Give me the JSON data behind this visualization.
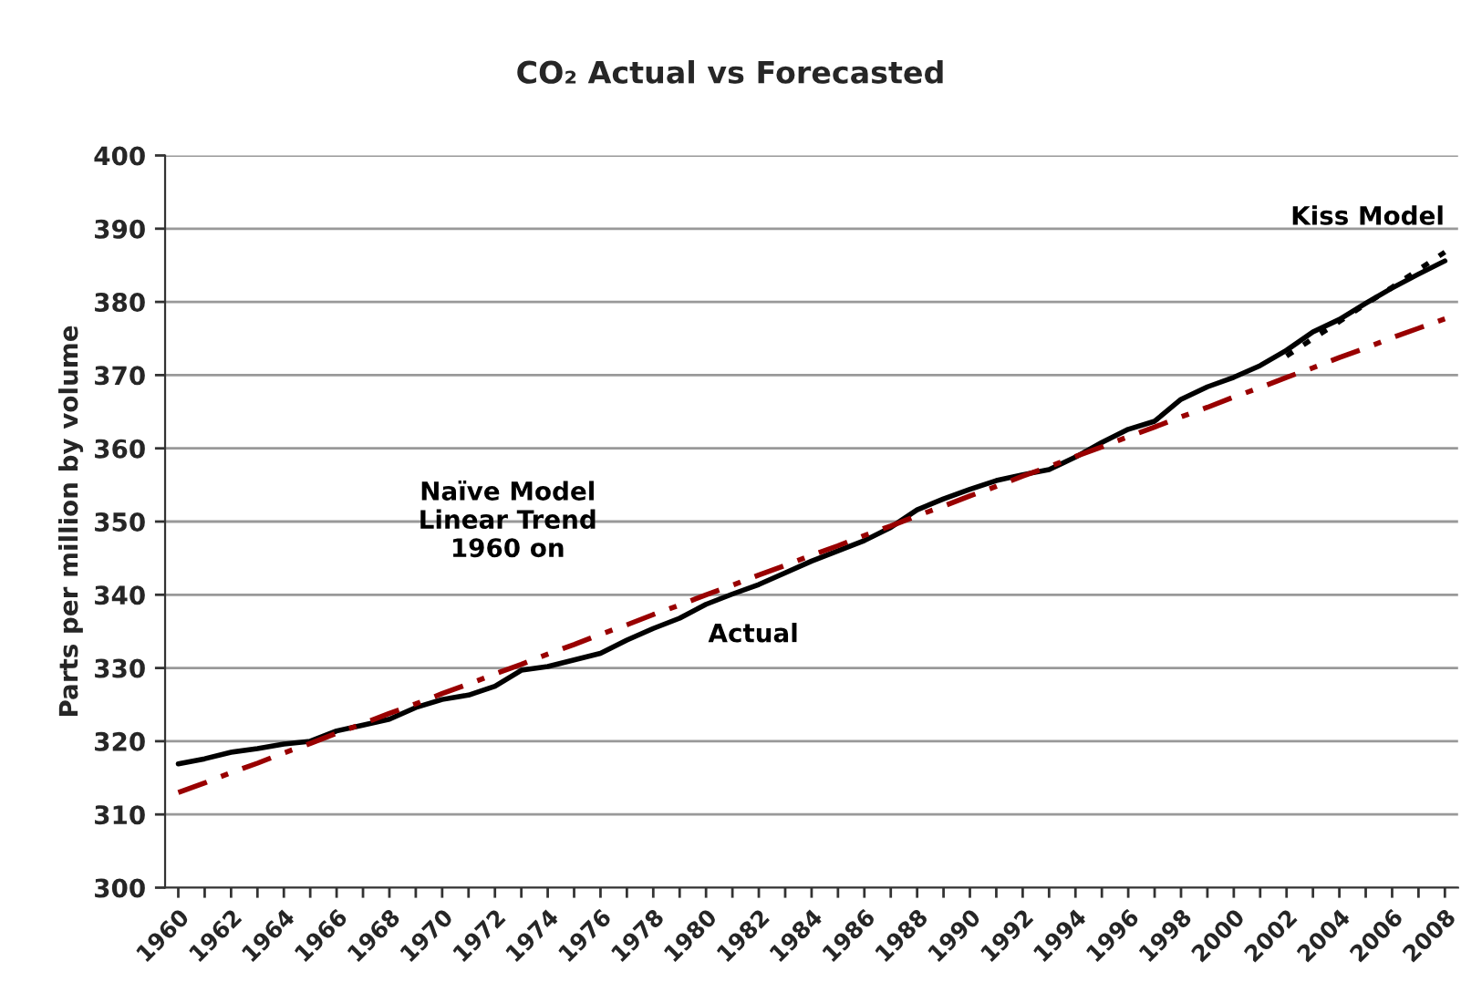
{
  "chart_data": {
    "type": "line",
    "title": "CO₂ Actual vs Forecasted",
    "ylabel": "Parts per million by volume",
    "categories": [
      "1960",
      null,
      "1962",
      null,
      "1964",
      null,
      "1966",
      null,
      "1968",
      null,
      "1970",
      null,
      "1972",
      null,
      "1974",
      null,
      "1976",
      null,
      "1978",
      null,
      "1980",
      null,
      "1982",
      null,
      "1984",
      null,
      "1986",
      null,
      "1988",
      null,
      "1990",
      null,
      "1992",
      null,
      "1994",
      null,
      "1996",
      null,
      "1998",
      null,
      "2000",
      null,
      "2002",
      null,
      "2004",
      null,
      "2006",
      null,
      "2008"
    ],
    "series": [
      {
        "name": "Actual",
        "color": "#000000",
        "line_style": "solid",
        "values": [
          316.9,
          317.6,
          318.5,
          319.0,
          319.6,
          320.0,
          321.4,
          322.2,
          323.0,
          324.6,
          325.7,
          326.3,
          327.5,
          329.7,
          330.2,
          331.1,
          332.0,
          333.8,
          335.4,
          336.8,
          338.7,
          340.1,
          341.4,
          343.0,
          344.6,
          346.0,
          347.4,
          349.2,
          351.6,
          353.1,
          354.4,
          355.6,
          356.4,
          357.1,
          358.8,
          360.8,
          362.6,
          363.7,
          366.7,
          368.4,
          369.7,
          371.3,
          373.4,
          375.9,
          377.6,
          379.8,
          381.9,
          383.8,
          385.6
        ]
      },
      {
        "name": "Naïve Model\nLinear Trend\n1960 on",
        "color": "#990000",
        "line_style": "dashdot",
        "values": [
          313.0,
          314.3,
          315.7,
          317.0,
          318.4,
          319.7,
          321.1,
          322.4,
          323.8,
          325.1,
          326.5,
          327.8,
          329.2,
          330.5,
          331.9,
          333.2,
          334.6,
          335.9,
          337.3,
          338.6,
          340.0,
          341.3,
          342.7,
          344.0,
          345.4,
          346.7,
          348.1,
          349.4,
          350.8,
          352.1,
          353.5,
          354.8,
          356.2,
          357.5,
          358.9,
          360.2,
          361.6,
          362.9,
          364.3,
          365.6,
          367.0,
          368.3,
          369.7,
          371.0,
          372.4,
          373.7,
          375.1,
          376.4,
          377.7
        ]
      },
      {
        "name": "Kiss Model",
        "color": "#000000",
        "line_style": "dotted",
        "values": [
          null,
          null,
          null,
          null,
          null,
          null,
          null,
          null,
          null,
          null,
          null,
          null,
          null,
          null,
          null,
          null,
          null,
          null,
          null,
          null,
          null,
          null,
          null,
          null,
          null,
          null,
          null,
          null,
          null,
          null,
          null,
          null,
          null,
          null,
          null,
          null,
          null,
          null,
          null,
          null,
          null,
          null,
          372.6,
          375.0,
          377.3,
          379.7,
          382.0,
          384.4,
          386.8
        ]
      }
    ],
    "ylim": [
      300,
      400
    ],
    "yticks": [
      300,
      310,
      320,
      330,
      340,
      350,
      360,
      370,
      380,
      390,
      400
    ],
    "grid": "y",
    "legend": false
  }
}
